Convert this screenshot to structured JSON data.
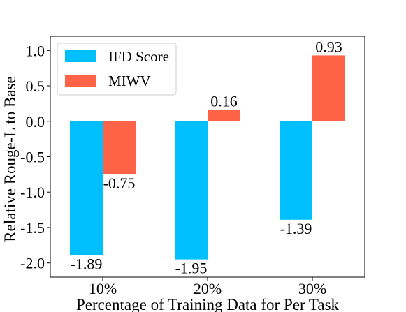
{
  "chart_data": {
    "type": "bar",
    "categories": [
      "10%",
      "20%",
      "30%"
    ],
    "series": [
      {
        "name": "IFD Score",
        "color": "#00BFFF",
        "values": [
          -1.89,
          -1.95,
          -1.39
        ],
        "labels": [
          "-1.89",
          "-1.95",
          "-1.39"
        ]
      },
      {
        "name": "MIWV",
        "color": "#FF6347",
        "values": [
          -0.75,
          0.16,
          0.93
        ],
        "labels": [
          "-0.75",
          "0.16",
          "0.93"
        ]
      }
    ],
    "xlabel": "Percentage of Training Data for Per Task",
    "ylabel": "Relative Rouge-L to Base",
    "ylim": [
      -2.2,
      1.2
    ],
    "yticks": [
      -2.0,
      -1.5,
      -1.0,
      -0.5,
      0.0,
      0.5,
      1.0
    ],
    "ytick_labels": [
      "-2.0",
      "-1.5",
      "-1.0",
      "-0.5",
      "0.0",
      "0.5",
      "1.0"
    ],
    "legend_position": "top-left",
    "grid": false
  }
}
